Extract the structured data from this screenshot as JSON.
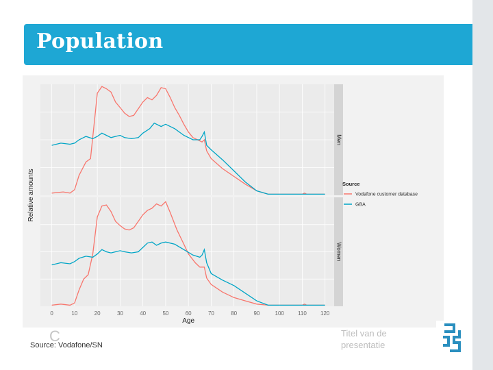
{
  "slide": {
    "title": "Population",
    "source": "Source: Vodafone/SN",
    "source_glyph": "C",
    "footer_text": "Titel van de presentatie",
    "logo": "cbs-logo",
    "colors": {
      "title_bar": "#1ea7d4",
      "vodafone": "#f8766d",
      "gba": "#00a5c6",
      "panel": "#ebebeb",
      "strip": "#d4d4d4"
    }
  },
  "chart_data": {
    "type": "line",
    "xlabel": "Age",
    "ylabel": "Relative amounts",
    "xlim": [
      -5,
      124
    ],
    "ylim": [
      0,
      1
    ],
    "x_ticks": [
      0,
      10,
      20,
      30,
      40,
      50,
      60,
      70,
      80,
      90,
      100,
      110,
      120
    ],
    "legend": {
      "title": "Source",
      "position": "right",
      "entries": [
        "Vodafone customer database",
        "GBA"
      ]
    },
    "facets": [
      {
        "label": "Men",
        "series": [
          {
            "name": "Vodafone customer database",
            "x": [
              0,
              5,
              8,
              10,
              12,
              15,
              17,
              19,
              20,
              22,
              24,
              26,
              28,
              30,
              32,
              34,
              36,
              38,
              40,
              42,
              44,
              46,
              48,
              50,
              52,
              54,
              56,
              58,
              60,
              62,
              64,
              66,
              67,
              68,
              70,
              75,
              80,
              85,
              90,
              95,
              100,
              105,
              110,
              111,
              112,
              115,
              120
            ],
            "y": [
              0.02,
              0.03,
              0.02,
              0.05,
              0.18,
              0.3,
              0.33,
              0.72,
              0.92,
              0.98,
              0.96,
              0.93,
              0.84,
              0.79,
              0.74,
              0.71,
              0.72,
              0.78,
              0.84,
              0.88,
              0.86,
              0.9,
              0.97,
              0.96,
              0.88,
              0.79,
              0.72,
              0.64,
              0.57,
              0.52,
              0.5,
              0.48,
              0.5,
              0.4,
              0.33,
              0.24,
              0.17,
              0.1,
              0.04,
              0.01,
              0.01,
              0.01,
              0.01,
              0.02,
              0.01,
              0.01,
              0.01
            ]
          },
          {
            "name": "GBA",
            "x": [
              0,
              4,
              8,
              10,
              12,
              15,
              18,
              20,
              22,
              24,
              26,
              28,
              30,
              32,
              35,
              38,
              40,
              43,
              45,
              48,
              50,
              54,
              58,
              62,
              65,
              66,
              67,
              68,
              70,
              75,
              80,
              85,
              90,
              95,
              100,
              110,
              112,
              115,
              120
            ],
            "y": [
              0.45,
              0.47,
              0.46,
              0.47,
              0.5,
              0.53,
              0.51,
              0.53,
              0.56,
              0.54,
              0.52,
              0.53,
              0.54,
              0.52,
              0.51,
              0.52,
              0.56,
              0.6,
              0.65,
              0.62,
              0.64,
              0.6,
              0.54,
              0.5,
              0.5,
              0.53,
              0.57,
              0.45,
              0.41,
              0.32,
              0.22,
              0.12,
              0.04,
              0.01,
              0.01,
              0.01,
              0.01,
              0.01,
              0.01
            ]
          }
        ]
      },
      {
        "label": "Women",
        "series": [
          {
            "name": "Vodafone customer database",
            "x": [
              0,
              4,
              8,
              10,
              12,
              14,
              16,
              18,
              20,
              22,
              24,
              26,
              28,
              30,
              32,
              34,
              36,
              38,
              40,
              42,
              44,
              46,
              48,
              50,
              52,
              55,
              58,
              60,
              63,
              65,
              66,
              67,
              68,
              70,
              75,
              80,
              85,
              90,
              95,
              100,
              105,
              110,
              111,
              112,
              115,
              120
            ],
            "y": [
              0.01,
              0.02,
              0.01,
              0.03,
              0.15,
              0.25,
              0.29,
              0.48,
              0.82,
              0.92,
              0.93,
              0.87,
              0.78,
              0.74,
              0.71,
              0.7,
              0.72,
              0.78,
              0.84,
              0.88,
              0.9,
              0.94,
              0.92,
              0.96,
              0.86,
              0.7,
              0.57,
              0.48,
              0.4,
              0.36,
              0.36,
              0.36,
              0.26,
              0.2,
              0.13,
              0.08,
              0.05,
              0.02,
              0.01,
              0.01,
              0.01,
              0.01,
              0.02,
              0.01,
              0.01,
              0.01
            ]
          },
          {
            "name": "GBA",
            "x": [
              0,
              4,
              8,
              10,
              12,
              15,
              18,
              20,
              22,
              24,
              26,
              28,
              30,
              32,
              35,
              38,
              40,
              42,
              44,
              46,
              48,
              50,
              54,
              58,
              62,
              65,
              66,
              67,
              68,
              70,
              75,
              80,
              85,
              90,
              95,
              100,
              110,
              115,
              120
            ],
            "y": [
              0.38,
              0.4,
              0.39,
              0.41,
              0.44,
              0.46,
              0.45,
              0.48,
              0.52,
              0.5,
              0.49,
              0.5,
              0.51,
              0.5,
              0.49,
              0.5,
              0.54,
              0.58,
              0.59,
              0.56,
              0.58,
              0.59,
              0.57,
              0.52,
              0.47,
              0.45,
              0.47,
              0.52,
              0.4,
              0.3,
              0.24,
              0.19,
              0.12,
              0.05,
              0.01,
              0.01,
              0.01,
              0.01,
              0.01
            ]
          }
        ]
      }
    ]
  }
}
